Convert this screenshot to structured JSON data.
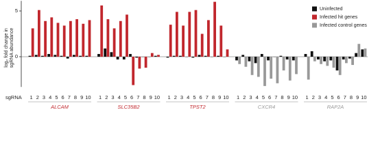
{
  "chart_data": {
    "type": "bar",
    "ylabel": [
      "log₂ fold change in",
      "sgRNA abundance"
    ],
    "x_label": "sgRNA",
    "categories": [
      "1",
      "2",
      "3",
      "4",
      "5",
      "6",
      "7",
      "8",
      "9",
      "10",
      "1",
      "2",
      "3",
      "4",
      "5",
      "6",
      "7",
      "8",
      "9",
      "10",
      "1",
      "2",
      "3",
      "4",
      "5",
      "6",
      "7",
      "8",
      "9",
      "10",
      "1",
      "2",
      "3",
      "4",
      "5",
      "6",
      "7",
      "8",
      "9",
      "10",
      "1",
      "2",
      "3",
      "4",
      "5",
      "6",
      "7",
      "8",
      "9",
      "10"
    ],
    "groups": [
      "ALCAM",
      "SLC35B2",
      "TPST2",
      "CXCR4",
      "RAP2A"
    ],
    "series": [
      {
        "name": "Uninfected",
        "color": "#111111",
        "values": [
          0.1,
          0.2,
          0.1,
          0.3,
          0.2,
          0.1,
          -0.2,
          0.2,
          0.1,
          0.1,
          0.3,
          0.9,
          0.5,
          -0.3,
          -0.3,
          0.3,
          -0.1,
          0,
          0,
          0.1,
          -0.1,
          0.1,
          0.1,
          0,
          -0.1,
          0.2,
          0.1,
          0,
          0.1,
          0,
          -0.4,
          0.2,
          -0.5,
          -0.7,
          0.3,
          -0.4,
          0,
          0.1,
          -0.3,
          -0.4,
          0.3,
          0.6,
          -0.3,
          -0.5,
          -0.4,
          -1.5,
          -0.3,
          -0.2,
          0.4,
          0.8
        ]
      },
      {
        "name": "Infected hit genes",
        "color": "#c1272d",
        "values": [
          3.1,
          5.1,
          3.9,
          4.3,
          3.7,
          3.4,
          3.9,
          4.1,
          3.6,
          4.0,
          5.6,
          4.1,
          3.1,
          3.9,
          4.6,
          -3.1,
          -1.3,
          -1.2,
          0.4,
          0.2,
          3.5,
          4.9,
          3.4,
          4.9,
          5.1,
          2.5,
          4.0,
          6.0,
          3.4,
          0.8,
          null,
          null,
          null,
          null,
          null,
          null,
          null,
          null,
          null,
          null,
          null,
          null,
          null,
          null,
          null,
          null,
          null,
          null,
          null,
          null
        ]
      },
      {
        "name": "Infected control genes",
        "color": "#999999",
        "values": [
          null,
          null,
          null,
          null,
          null,
          null,
          null,
          null,
          null,
          null,
          null,
          null,
          null,
          null,
          null,
          null,
          null,
          null,
          null,
          null,
          null,
          null,
          null,
          null,
          null,
          null,
          null,
          null,
          null,
          null,
          -0.8,
          -1.1,
          -2.0,
          -2.2,
          -3.2,
          -2.4,
          -2.9,
          -1.5,
          -2.6,
          -1.9,
          -2.5,
          -0.5,
          -0.8,
          -1.0,
          -1.2,
          -2.0,
          -0.7,
          -0.9,
          1.4,
          0.9
        ]
      }
    ],
    "ylim": [
      -3.3,
      6.1
    ],
    "yticks": [
      0,
      5
    ]
  }
}
